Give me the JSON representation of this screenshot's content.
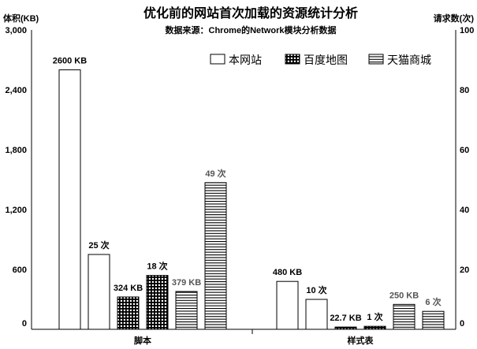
{
  "chart_data": {
    "type": "bar",
    "title": "优化前的网站首次加载的资源统计分析",
    "subtitle": "数据来源：Chrome的Network模块分析数据",
    "ylabel_left": "体积(KB)",
    "ylabel_right": "请求数(次)",
    "ylim_left": [
      0,
      3000
    ],
    "ylim_right": [
      0,
      100
    ],
    "yticks_left": [
      "0",
      "600",
      "1,200",
      "1,800",
      "2,400",
      "3,000"
    ],
    "yticks_right": [
      "0",
      "20",
      "40",
      "60",
      "80",
      "100"
    ],
    "categories": [
      "脚本",
      "样式表"
    ],
    "legend": [
      "本网站",
      "百度地图",
      "天猫商城"
    ],
    "legend_position": "top-right",
    "grid": false,
    "bars": [
      {
        "category": "脚本",
        "site": "本网站",
        "metric": "size",
        "axis": "left",
        "value": 2600,
        "label": "2600 KB",
        "muted": false
      },
      {
        "category": "脚本",
        "site": "本网站",
        "metric": "count",
        "axis": "right",
        "value": 25,
        "label": "25 次",
        "muted": false
      },
      {
        "category": "脚本",
        "site": "百度地图",
        "metric": "size",
        "axis": "left",
        "value": 324,
        "label": "324 KB",
        "muted": false
      },
      {
        "category": "脚本",
        "site": "百度地图",
        "metric": "count",
        "axis": "right",
        "value": 18,
        "label": "18 次",
        "muted": false
      },
      {
        "category": "脚本",
        "site": "天猫商城",
        "metric": "size",
        "axis": "left",
        "value": 379,
        "label": "379 KB",
        "muted": true
      },
      {
        "category": "脚本",
        "site": "天猫商城",
        "metric": "count",
        "axis": "right",
        "value": 49,
        "label": "49 次",
        "muted": true
      },
      {
        "category": "样式表",
        "site": "本网站",
        "metric": "size",
        "axis": "left",
        "value": 480,
        "label": "480 KB",
        "muted": false
      },
      {
        "category": "样式表",
        "site": "本网站",
        "metric": "count",
        "axis": "right",
        "value": 10,
        "label": "10 次",
        "muted": false
      },
      {
        "category": "样式表",
        "site": "百度地图",
        "metric": "size",
        "axis": "left",
        "value": 22.7,
        "label": "22.7 KB",
        "muted": false
      },
      {
        "category": "样式表",
        "site": "百度地图",
        "metric": "count",
        "axis": "right",
        "value": 1,
        "label": "1 次",
        "muted": false
      },
      {
        "category": "样式表",
        "site": "天猫商城",
        "metric": "size",
        "axis": "left",
        "value": 250,
        "label": "250 KB",
        "muted": true
      },
      {
        "category": "样式表",
        "site": "天猫商城",
        "metric": "count",
        "axis": "right",
        "value": 6,
        "label": "6 次",
        "muted": true
      }
    ]
  }
}
